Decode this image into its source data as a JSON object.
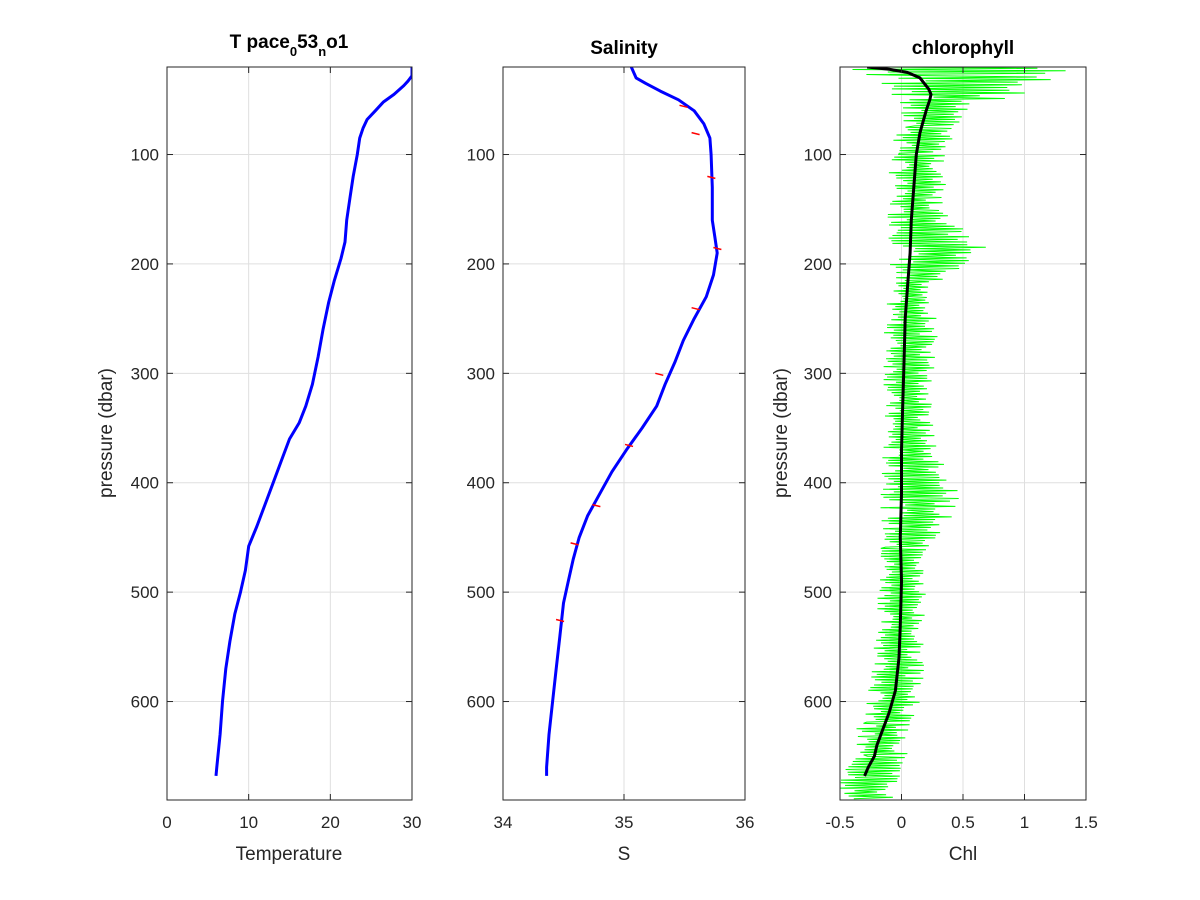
{
  "chart_data": [
    {
      "type": "line",
      "title": {
        "main": "T pace",
        "sub1": "0",
        "mid": "53",
        "sub2": "n",
        "tail": "o1"
      },
      "xlabel": "Temperature",
      "ylabel": "pressure (dbar)",
      "xlim": [
        0,
        30
      ],
      "ylim": [
        690,
        20
      ],
      "y_reversed": true,
      "grid": true,
      "x_ticks": [
        "0",
        "10",
        "20",
        "30"
      ],
      "y_ticks": [
        "100",
        "200",
        "300",
        "400",
        "500",
        "600"
      ],
      "series": [
        {
          "color": "#0000ff",
          "points": [
            [
              30.0,
              20
            ],
            [
              30.0,
              28
            ],
            [
              29.5,
              33
            ],
            [
              29.0,
              37
            ],
            [
              27.8,
              45
            ],
            [
              26.5,
              52
            ],
            [
              25.5,
              60
            ],
            [
              24.5,
              68
            ],
            [
              24.0,
              76
            ],
            [
              23.6,
              85
            ],
            [
              23.3,
              100
            ],
            [
              22.8,
              120
            ],
            [
              22.4,
              140
            ],
            [
              22.0,
              160
            ],
            [
              21.8,
              180
            ],
            [
              21.3,
              195
            ],
            [
              20.5,
              215
            ],
            [
              19.8,
              235
            ],
            [
              19.1,
              260
            ],
            [
              18.5,
              285
            ],
            [
              17.8,
              310
            ],
            [
              17.0,
              330
            ],
            [
              16.2,
              345
            ],
            [
              15.0,
              360
            ],
            [
              14.0,
              380
            ],
            [
              13.0,
              400
            ],
            [
              12.0,
              420
            ],
            [
              11.0,
              440
            ],
            [
              10.0,
              458
            ],
            [
              9.6,
              480
            ],
            [
              9.0,
              500
            ],
            [
              8.3,
              520
            ],
            [
              7.7,
              545
            ],
            [
              7.2,
              570
            ],
            [
              6.8,
              600
            ],
            [
              6.5,
              630
            ],
            [
              6.1,
              660
            ],
            [
              6.0,
              668
            ]
          ]
        }
      ]
    },
    {
      "type": "line",
      "title": "Salinity",
      "xlabel": "S",
      "ylabel": "",
      "xlim": [
        34,
        36
      ],
      "ylim": [
        690,
        20
      ],
      "y_reversed": true,
      "grid": true,
      "x_ticks": [
        "34",
        "35",
        "36"
      ],
      "y_ticks": [
        "100",
        "200",
        "300",
        "400",
        "500",
        "600"
      ],
      "series": [
        {
          "color": "#0000ff",
          "points": [
            [
              35.06,
              20
            ],
            [
              35.1,
              30
            ],
            [
              35.18,
              35
            ],
            [
              35.3,
              42
            ],
            [
              35.45,
              50
            ],
            [
              35.58,
              60
            ],
            [
              35.66,
              72
            ],
            [
              35.71,
              85
            ],
            [
              35.72,
              100
            ],
            [
              35.73,
              130
            ],
            [
              35.73,
              160
            ],
            [
              35.75,
              175
            ],
            [
              35.77,
              190
            ],
            [
              35.74,
              210
            ],
            [
              35.68,
              230
            ],
            [
              35.58,
              250
            ],
            [
              35.49,
              270
            ],
            [
              35.42,
              290
            ],
            [
              35.34,
              310
            ],
            [
              35.27,
              330
            ],
            [
              35.15,
              350
            ],
            [
              35.02,
              370
            ],
            [
              34.9,
              390
            ],
            [
              34.8,
              410
            ],
            [
              34.7,
              430
            ],
            [
              34.63,
              450
            ],
            [
              34.58,
              470
            ],
            [
              34.54,
              490
            ],
            [
              34.5,
              510
            ],
            [
              34.47,
              540
            ],
            [
              34.44,
              570
            ],
            [
              34.41,
              600
            ],
            [
              34.38,
              630
            ],
            [
              34.36,
              660
            ],
            [
              34.36,
              668
            ]
          ]
        },
        {
          "color": "#ff0000",
          "points": [
            [
              35.5,
              55
            ],
            [
              35.6,
              80
            ],
            [
              35.73,
              120
            ],
            [
              35.78,
              185
            ],
            [
              35.6,
              240
            ],
            [
              35.3,
              300
            ],
            [
              35.05,
              365
            ],
            [
              34.78,
              420
            ],
            [
              34.6,
              455
            ],
            [
              34.48,
              525
            ]
          ]
        }
      ]
    },
    {
      "type": "line",
      "title": "chlorophyll",
      "xlabel": "Chl",
      "ylabel": "pressure (dbar)",
      "xlim": [
        -0.5,
        1.5
      ],
      "ylim": [
        690,
        20
      ],
      "y_reversed": true,
      "grid": true,
      "x_ticks": [
        "-0.5",
        "0",
        "0.5",
        "1",
        "1.5"
      ],
      "y_ticks": [
        "100",
        "200",
        "300",
        "400",
        "500",
        "600"
      ],
      "series": [
        {
          "color": "#00ff00",
          "band": [
            [
              20,
              -0.55,
              1.5
            ],
            [
              28,
              -0.3,
              1.5
            ],
            [
              35,
              -0.2,
              1.25
            ],
            [
              45,
              -0.1,
              1.05
            ],
            [
              55,
              -0.05,
              0.6
            ],
            [
              75,
              -0.05,
              0.45
            ],
            [
              100,
              -0.1,
              0.4
            ],
            [
              150,
              -0.12,
              0.33
            ],
            [
              186,
              -0.1,
              0.7
            ],
            [
              220,
              -0.12,
              0.28
            ],
            [
              270,
              -0.15,
              0.3
            ],
            [
              320,
              -0.15,
              0.25
            ],
            [
              370,
              -0.17,
              0.3
            ],
            [
              418,
              -0.17,
              0.5
            ],
            [
              460,
              -0.18,
              0.22
            ],
            [
              520,
              -0.2,
              0.2
            ],
            [
              580,
              -0.25,
              0.18
            ],
            [
              620,
              -0.35,
              0.12
            ],
            [
              650,
              -0.45,
              0.05
            ],
            [
              690,
              -0.55,
              -0.05
            ]
          ]
        },
        {
          "color": "#000000",
          "points": [
            [
              -0.28,
              20
            ],
            [
              -0.1,
              22
            ],
            [
              0.05,
              25
            ],
            [
              0.15,
              30
            ],
            [
              0.22,
              40
            ],
            [
              0.24,
              45
            ],
            [
              0.23,
              50
            ],
            [
              0.2,
              60
            ],
            [
              0.15,
              80
            ],
            [
              0.12,
              100
            ],
            [
              0.1,
              130
            ],
            [
              0.08,
              160
            ],
            [
              0.07,
              190
            ],
            [
              0.05,
              220
            ],
            [
              0.03,
              250
            ],
            [
              0.02,
              290
            ],
            [
              0.01,
              330
            ],
            [
              0.0,
              370
            ],
            [
              0.0,
              410
            ],
            [
              -0.01,
              450
            ],
            [
              0.0,
              490
            ],
            [
              -0.01,
              530
            ],
            [
              -0.02,
              560
            ],
            [
              -0.05,
              590
            ],
            [
              -0.1,
              610
            ],
            [
              -0.15,
              625
            ],
            [
              -0.2,
              640
            ],
            [
              -0.22,
              650
            ],
            [
              -0.27,
              660
            ],
            [
              -0.3,
              668
            ]
          ]
        }
      ]
    }
  ]
}
